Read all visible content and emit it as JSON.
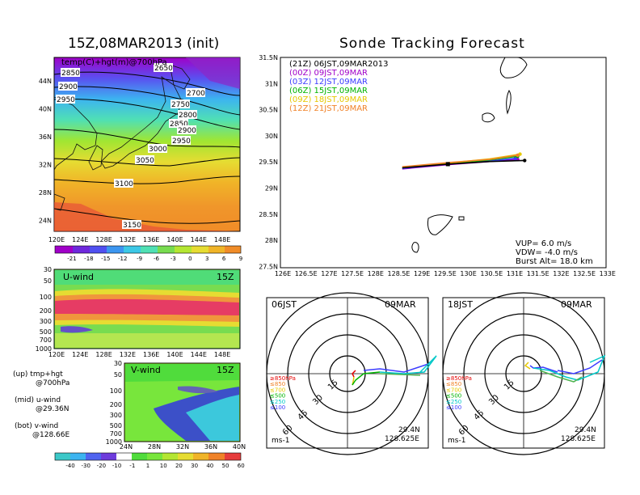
{
  "left_title": "15Z,08MAR2013 (init)",
  "right_title": "Sonde Tracking Forecast",
  "map700": {
    "label": "temp(C)+hgt(m)@700hPa",
    "lon_ticks": [
      "120E",
      "124E",
      "128E",
      "132E",
      "136E",
      "140E",
      "144E",
      "148E"
    ],
    "lat_ticks": [
      "44N",
      "40N",
      "36N",
      "32N",
      "28N",
      "24N"
    ],
    "contour_labels": [
      "2650",
      "2850",
      "2900",
      "2950",
      "2700",
      "2750",
      "2800",
      "2850",
      "2900",
      "2950",
      "3000",
      "3050",
      "3100",
      "3150"
    ],
    "colorbar": [
      "-21",
      "-18",
      "-15",
      "-12",
      "-9",
      "-6",
      "-3",
      "0",
      "3",
      "6",
      "9"
    ]
  },
  "uwind": {
    "label": "U-wind",
    "time": "15Z",
    "p_ticks": [
      "30",
      "50",
      "100",
      "200",
      "300",
      "500",
      "700",
      "1000"
    ],
    "lon_ticks": [
      "120E",
      "124E",
      "128E",
      "132E",
      "136E",
      "140E",
      "144E",
      "148E"
    ]
  },
  "vwind": {
    "label": "V-wind",
    "time": "15Z",
    "p_ticks": [
      "30",
      "50",
      "100",
      "200",
      "300",
      "500",
      "700",
      "1000"
    ],
    "lat_ticks": [
      "24N",
      "28N",
      "32N",
      "36N",
      "40N"
    ]
  },
  "wind_colorbar": [
    "-40",
    "-30",
    "-20",
    "-10",
    "-1",
    "1",
    "10",
    "20",
    "30",
    "40",
    "50",
    "60"
  ],
  "notes": {
    "up1": "(up) tmp+hgt",
    "up2": "@700hPa",
    "mid1": "(mid) u-wind",
    "mid2": "@29.36N",
    "bot1": "(bot) v-wind",
    "bot2": "@128.66E"
  },
  "track": {
    "lon_ticks": [
      "126E",
      "126.5E",
      "127E",
      "127.5E",
      "128E",
      "128.5E",
      "129E",
      "129.5E",
      "130E",
      "130.5E",
      "131E",
      "131.5E",
      "132E",
      "132.5E",
      "133E"
    ],
    "lat_ticks": [
      "31.5N",
      "31N",
      "30.5N",
      "30N",
      "29.5N",
      "29N",
      "28.5N",
      "28N",
      "27.5N"
    ],
    "legend": [
      {
        "t": "(21Z) 06JST,09MAR2013",
        "c": "#000000"
      },
      {
        "t": "(00Z) 09JST,09MAR",
        "c": "#a000c8"
      },
      {
        "t": "(03Z) 12JST,09MAR",
        "c": "#3c3cff"
      },
      {
        "t": "(06Z) 15JST,09MAR",
        "c": "#00b400"
      },
      {
        "t": "(09Z) 18JST,09MAR",
        "c": "#e6c800"
      },
      {
        "t": "(12Z) 21JST,09MAR",
        "c": "#f08228"
      }
    ],
    "params": {
      "vup": "VUP= 6.0 m/s",
      "vdw": "VDW= -4.0 m/s",
      "burst": "Burst Alt= 18.0 km"
    }
  },
  "hodo_left": {
    "time": "06JST",
    "date": "09MAR",
    "lat": "29.4N",
    "lon": "128.625E",
    "unit": "ms-1",
    "rings": [
      "15",
      "30",
      "45",
      "60"
    ]
  },
  "hodo_right": {
    "time": "18JST",
    "date": "09MAR",
    "lat": "29.4N",
    "lon": "128.625E",
    "unit": "ms-1",
    "rings": [
      "15",
      "30",
      "45",
      "60"
    ]
  },
  "hodo_legend": [
    {
      "t": "≥850hPa",
      "c": "#e60000"
    },
    {
      "t": "≤850",
      "c": "#f08228"
    },
    {
      "t": "≤700",
      "c": "#e6c800"
    },
    {
      "t": "≤500",
      "c": "#00b400"
    },
    {
      "t": "≤250",
      "c": "#00c8c8"
    },
    {
      "t": "≤100",
      "c": "#3c3cff"
    }
  ],
  "colors": {
    "accent": "#000000"
  }
}
